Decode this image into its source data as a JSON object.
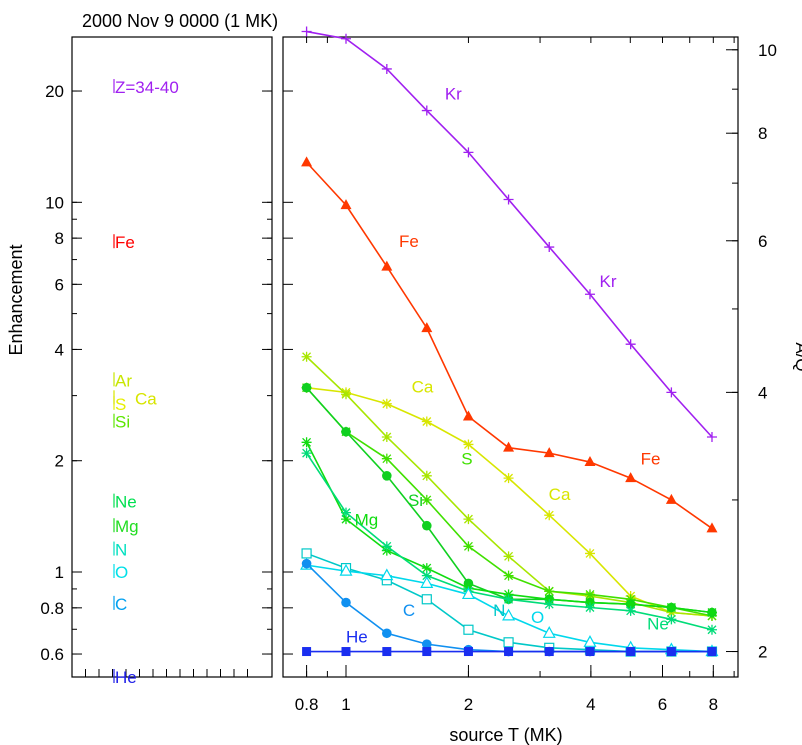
{
  "header": {
    "title": "2000 Nov 9 0000 (1 MK)"
  },
  "chart_data": [
    {
      "type": "scatter",
      "panel": "left",
      "ylabel": "Enhancement",
      "yscale": "log",
      "ylim": [
        0.52,
        28
      ],
      "yticks": [
        0.6,
        0.8,
        1,
        2,
        4,
        6,
        8,
        10,
        20
      ],
      "yticklabels": [
        "0.6",
        "0.8",
        "1",
        "2",
        "4",
        "6",
        "8",
        "10",
        "20"
      ],
      "points": [
        {
          "label": "Z=34-40",
          "y": 20.5,
          "color": "#a020f0"
        },
        {
          "label": "Fe",
          "y": 7.8,
          "color": "#ff0000"
        },
        {
          "label": "Ar",
          "y": 3.3,
          "color": "#c8e600"
        },
        {
          "label": "S",
          "y": 2.85,
          "color": "#e6ef00"
        },
        {
          "label": "Ca",
          "y": 2.95,
          "color": "#d7e500"
        },
        {
          "label": "Si",
          "y": 2.55,
          "color": "#5ce600"
        },
        {
          "label": "Ne",
          "y": 1.55,
          "color": "#00e050"
        },
        {
          "label": "Mg",
          "y": 1.33,
          "color": "#22dd22"
        },
        {
          "label": "N",
          "y": 1.15,
          "color": "#00e0c0"
        },
        {
          "label": "O",
          "y": 1.0,
          "color": "#00e0e8"
        },
        {
          "label": "C",
          "y": 0.82,
          "color": "#00a0f0"
        },
        {
          "label": "He",
          "y": 0.52,
          "color": "#2020e8"
        }
      ]
    },
    {
      "type": "line",
      "panel": "right",
      "xlabel": "source T (MK)",
      "ylabel": "A/Q",
      "xscale": "log",
      "yscale": "log",
      "xlim": [
        0.7,
        9.2
      ],
      "ylim": [
        1.95,
        10.8
      ],
      "xticks": [
        0.8,
        1,
        2,
        4,
        6,
        8
      ],
      "xticklabels": [
        "0.8",
        "1",
        "2",
        "4",
        "6",
        "8"
      ],
      "yticks": [
        2,
        4,
        6,
        8,
        10
      ],
      "yticklabels": [
        "2",
        "4",
        "6",
        "8",
        "10"
      ],
      "x": [
        0.8,
        1.0,
        1.26,
        1.58,
        2.0,
        2.51,
        3.16,
        3.98,
        5.01,
        6.31,
        7.94
      ],
      "series": [
        {
          "name": "Kr",
          "color": "#a020f0",
          "marker": "plus",
          "values": [
            10.5,
            10.3,
            9.5,
            8.5,
            7.6,
            6.7,
            5.9,
            5.2,
            4.55,
            4.0,
            3.55
          ]
        },
        {
          "name": "Fe",
          "color": "#ff3800",
          "marker": "triangle",
          "values": [
            7.4,
            6.6,
            5.6,
            4.75,
            3.75,
            3.45,
            3.4,
            3.32,
            3.18,
            3.0,
            2.78
          ]
        },
        {
          "name": "Ca",
          "color": "#d8e600",
          "marker": "star",
          "values": [
            4.05,
            4.0,
            3.88,
            3.7,
            3.48,
            3.18,
            2.88,
            2.6,
            2.32,
            2.22,
            2.2
          ]
        },
        {
          "name": "Ar",
          "color": "#a8e600",
          "marker": "star",
          "values": [
            4.4,
            3.98,
            3.55,
            3.2,
            2.85,
            2.58,
            2.35,
            2.32,
            2.28,
            2.22,
            2.2
          ]
        },
        {
          "name": "S",
          "color": "#40e000",
          "marker": "star",
          "values": [
            4.05,
            3.6,
            3.35,
            3.0,
            2.65,
            2.45,
            2.35,
            2.33,
            2.3,
            2.25,
            2.2
          ]
        },
        {
          "name": "Si",
          "color": "#10d020",
          "marker": "dot",
          "values": [
            4.05,
            3.6,
            3.2,
            2.8,
            2.4,
            2.3,
            2.3,
            2.28,
            2.27,
            2.25,
            2.22
          ]
        },
        {
          "name": "Mg",
          "color": "#10dc10",
          "marker": "star",
          "values": [
            3.5,
            2.85,
            2.62,
            2.5,
            2.37,
            2.33,
            2.3,
            2.28,
            2.27,
            2.25,
            2.22
          ]
        },
        {
          "name": "Ne",
          "color": "#00dc78",
          "marker": "star",
          "values": [
            3.4,
            2.9,
            2.65,
            2.45,
            2.35,
            2.3,
            2.27,
            2.25,
            2.23,
            2.18,
            2.12
          ]
        },
        {
          "name": "N",
          "color": "#00c8c8",
          "marker": "square-open",
          "values": [
            2.6,
            2.5,
            2.42,
            2.3,
            2.12,
            2.05,
            2.02,
            2.01,
            2.0,
            2.0,
            2.0
          ]
        },
        {
          "name": "O",
          "color": "#00d8ec",
          "marker": "triangle-open",
          "values": [
            2.52,
            2.48,
            2.45,
            2.4,
            2.33,
            2.2,
            2.1,
            2.05,
            2.02,
            2.01,
            2.0
          ]
        },
        {
          "name": "C",
          "color": "#1090f0",
          "marker": "dot",
          "values": [
            2.53,
            2.28,
            2.1,
            2.04,
            2.01,
            2.0,
            2.0,
            2.0,
            2.0,
            2.0,
            2.0
          ]
        },
        {
          "name": "He",
          "color": "#1a2ef0",
          "marker": "square",
          "values": [
            2.0,
            2.0,
            2.0,
            2.0,
            2.0,
            2.0,
            2.0,
            2.0,
            2.0,
            2.0,
            2.0
          ]
        }
      ],
      "labels": [
        {
          "text": "Kr",
          "series": "Kr",
          "x": 1.75,
          "y": 8.75
        },
        {
          "text": "Kr",
          "series": "Kr",
          "x": 4.2,
          "y": 5.3
        },
        {
          "text": "Fe",
          "series": "Fe",
          "x": 1.35,
          "y": 5.9
        },
        {
          "text": "Fe",
          "series": "Fe",
          "x": 5.3,
          "y": 3.3
        },
        {
          "text": "Ca",
          "series": "Ca",
          "x": 1.45,
          "y": 4.0
        },
        {
          "text": "Ca",
          "series": "Ca",
          "x": 3.15,
          "y": 3.0
        },
        {
          "text": "S",
          "series": "S",
          "x": 1.92,
          "y": 3.3
        },
        {
          "text": "Si",
          "series": "Si",
          "x": 1.42,
          "y": 2.95
        },
        {
          "text": "Mg",
          "series": "Mg",
          "x": 1.05,
          "y": 2.8
        },
        {
          "text": "N",
          "series": "N",
          "x": 2.3,
          "y": 2.2
        },
        {
          "text": "O",
          "series": "O",
          "x": 2.85,
          "y": 2.16
        },
        {
          "text": "C",
          "series": "C",
          "x": 1.38,
          "y": 2.2
        },
        {
          "text": "Ne",
          "series": "Ne",
          "x": 5.5,
          "y": 2.12
        },
        {
          "text": "He",
          "series": "He",
          "x": 1.0,
          "y": 2.05
        }
      ]
    }
  ]
}
